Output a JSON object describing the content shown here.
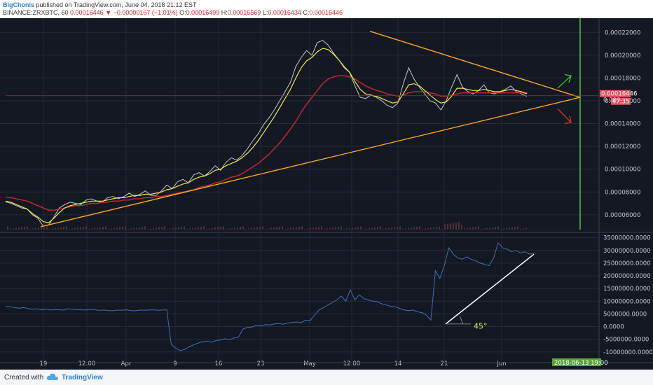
{
  "header": {
    "author": "BigChonis",
    "published_text": "published on TradingView.com, June 04, 2018 21:12 EST",
    "symbol": "BINANCE:ZRXBTC, 60",
    "last": "0.00016446",
    "change_arrow": "▼",
    "change": "−0.00000167 (−1.01%)",
    "open_label": "O:",
    "open": "0.00016499",
    "high_label": "H:",
    "high": "0.00016569",
    "low_label": "L:",
    "low": "0.00016434",
    "close_label": "C:",
    "close": "0.00016446"
  },
  "footer": {
    "created_with": "Created with",
    "brand": "TradingView",
    "logo_icon": "tradingview-cloud-icon"
  },
  "chart_data": {
    "type": "line",
    "x_tick_labels": [
      "19",
      "12:00",
      "Apr",
      "9",
      "16",
      "23",
      "May",
      "12:00",
      "14",
      "21",
      "Jun"
    ],
    "price_panel": {
      "y_tick_labels": [
        "0.00022000",
        "0.00020000",
        "0.00018000",
        "0.00016000",
        "0.00014000",
        "0.00012000",
        "0.00010000",
        "0.00008000",
        "0.00006000"
      ],
      "ylim": [
        4.7e-05,
        0.00023
      ],
      "price_label": "0.00016446",
      "countdown_label": "47:35",
      "partial_label": "0.000",
      "price_series": [
        7.15e-05,
        7e-05,
        6.8e-05,
        6.6e-05,
        6.5e-05,
        6e-05,
        5.7e-05,
        5e-05,
        5.1e-05,
        5.8e-05,
        6.6e-05,
        6.9e-05,
        7.1e-05,
        7e-05,
        6.9e-05,
        7.3e-05,
        7.4e-05,
        7.2e-05,
        7.1e-05,
        7.5e-05,
        7.6e-05,
        7.4e-05,
        7.6e-05,
        7.9e-05,
        7.6e-05,
        7.8e-05,
        8.1e-05,
        7.7e-05,
        7.7e-05,
        8.1e-05,
        8.6e-05,
        8.3e-05,
        8.9e-05,
        9.1e-05,
        8.8e-05,
        9.5e-05,
        9.7e-05,
        9.4e-05,
        9.8e-05,
        0.000103,
        9.9e-05,
        0.000106,
        0.00011,
        0.000108,
        0.000112,
        0.000118,
        0.000125,
        0.000131,
        0.000139,
        0.000145,
        0.000152,
        0.00016,
        0.000168,
        0.000176,
        0.00019,
        0.000198,
        0.000204,
        0.0002,
        0.000211,
        0.000213,
        0.000209,
        0.000202,
        0.000196,
        0.000189,
        0.000185,
        0.000173,
        0.000163,
        0.000162,
        0.000165,
        0.000163,
        0.00016,
        0.000156,
        0.000154,
        0.000158,
        0.000175,
        0.000189,
        0.000179,
        0.000172,
        0.000166,
        0.00016,
        0.000158,
        0.000152,
        0.00016,
        0.000172,
        0.000183,
        0.000172,
        0.000168,
        0.000166,
        0.000169,
        0.000174,
        0.000167,
        0.000166,
        0.000168,
        0.00017,
        0.000173,
        0.000168,
        0.000166,
        0.000164
      ],
      "ma_fast": [
        7.2e-05,
        7.1e-05,
        6.9e-05,
        6.7e-05,
        6.5e-05,
        6.1e-05,
        5.8e-05,
        5.4e-05,
        5.3e-05,
        5.7e-05,
        6.2e-05,
        6.6e-05,
        6.8e-05,
        6.9e-05,
        7e-05,
        7.1e-05,
        7.2e-05,
        7.2e-05,
        7.2e-05,
        7.3e-05,
        7.4e-05,
        7.5e-05,
        7.5e-05,
        7.6e-05,
        7.7e-05,
        7.7e-05,
        7.8e-05,
        7.8e-05,
        7.9e-05,
        8e-05,
        8.2e-05,
        8.3e-05,
        8.5e-05,
        8.7e-05,
        8.8e-05,
        9.1e-05,
        9.3e-05,
        9.4e-05,
        9.6e-05,
        9.9e-05,
        0.0001,
        0.000103,
        0.000105,
        0.000107,
        0.00011,
        0.000114,
        0.000119,
        0.000125,
        0.000132,
        0.000139,
        0.000146,
        0.000154,
        0.000162,
        0.00017,
        0.00018,
        0.000189,
        0.000195,
        0.000198,
        0.000203,
        0.000206,
        0.000205,
        0.000201,
        0.000196,
        0.00019,
        0.000185,
        0.000177,
        0.00017,
        0.000166,
        0.000165,
        0.000164,
        0.000162,
        0.00016,
        0.000158,
        0.000159,
        0.000166,
        0.000174,
        0.000175,
        0.000173,
        0.000169,
        0.000165,
        0.000161,
        0.000158,
        0.000159,
        0.000164,
        0.000171,
        0.000171,
        0.00017,
        0.000169,
        0.000169,
        0.00017,
        0.000169,
        0.000168,
        0.000168,
        0.000169,
        0.00017,
        0.000169,
        0.000168,
        0.000166
      ],
      "ma_slow": [
        7.55e-05,
        7.5e-05,
        7.4e-05,
        7.3e-05,
        7.2e-05,
        7e-05,
        6.8e-05,
        6.6e-05,
        6.4e-05,
        6.4e-05,
        6.5e-05,
        6.6e-05,
        6.7e-05,
        6.8e-05,
        6.8e-05,
        6.9e-05,
        7e-05,
        7e-05,
        7.1e-05,
        7.1e-05,
        7.2e-05,
        7.2e-05,
        7.3e-05,
        7.3e-05,
        7.4e-05,
        7.4e-05,
        7.5e-05,
        7.5e-05,
        7.6e-05,
        7.6e-05,
        7.7e-05,
        7.8e-05,
        7.9e-05,
        8e-05,
        8.1e-05,
        8.2e-05,
        8.4e-05,
        8.5e-05,
        8.6e-05,
        8.8e-05,
        8.9e-05,
        9.1e-05,
        9.3e-05,
        9.4e-05,
        9.6e-05,
        9.9e-05,
        0.000102,
        0.000105,
        0.000109,
        0.000113,
        0.000118,
        0.000123,
        0.000129,
        0.000135,
        0.000142,
        0.00015,
        0.000157,
        0.000163,
        0.000169,
        0.000175,
        0.000179,
        0.000181,
        0.000182,
        0.000182,
        0.000181,
        0.000179,
        0.000176,
        0.000173,
        0.000171,
        0.000169,
        0.000168,
        0.000166,
        0.000165,
        0.000164,
        0.000165,
        0.000167,
        0.000168,
        0.000168,
        0.000168,
        0.000167,
        0.000166,
        0.000164,
        0.000164,
        0.000165,
        0.000166,
        0.000167,
        0.000167,
        0.000167,
        0.000167,
        0.000167,
        0.000167,
        0.000167,
        0.000167,
        0.000167,
        0.000167,
        0.000167,
        0.000167,
        0.000167
      ]
    },
    "indicator_panel": {
      "y_tick_labels": [
        "35000000.0000",
        "30000000.0000",
        "25000000.0000",
        "20000000.0000",
        "15000000.0000",
        "10000000.0000",
        "5000000.0000",
        "0.0000",
        "-5000000.0000",
        "-10000000.0000"
      ],
      "ylim": [
        -12000000,
        36000000
      ],
      "series": [
        8000000,
        7800000,
        7500000,
        7200000,
        7500000,
        7100000,
        6800000,
        7000000,
        6600000,
        6900000,
        6500000,
        6700000,
        6600000,
        6500000,
        7000000,
        6800000,
        6700000,
        6600000,
        6500000,
        6800000,
        6600000,
        6400000,
        6500000,
        6300000,
        6200000,
        6500000,
        6400000,
        6600000,
        6300000,
        6200000,
        6500000,
        6400000,
        6500000,
        6600000,
        6400000,
        6500000,
        6600000,
        -7000000,
        -8500000,
        -9500000,
        -9000000,
        -8000000,
        -7200000,
        -6500000,
        -6000000,
        -5700000,
        -6200000,
        -5500000,
        -5300000,
        -4800000,
        -5200000,
        -4500000,
        -4200000,
        -1000000,
        -300000,
        -200000,
        500000,
        300000,
        800000,
        600000,
        1000000,
        1200000,
        900000,
        1400000,
        1600000,
        1800000,
        1500000,
        2500000,
        2300000,
        4500000,
        6500000,
        7500000,
        8500000,
        9500000,
        10500000,
        12000000,
        10000000,
        14500000,
        10500000,
        12500000,
        11000000,
        10500000,
        10000000,
        9800000,
        9000000,
        8500000,
        8000000,
        7800000,
        7200000,
        6500000,
        6300000,
        6500000,
        5800000,
        5500000,
        4500000,
        2500000,
        22000000,
        19000000,
        24000000,
        31000000,
        28500000,
        27000000,
        26500000,
        27500000,
        26500000,
        26000000,
        25000000,
        24500000,
        24000000,
        27000000,
        33000000,
        31000000,
        30500000,
        29500000,
        30000000,
        29000000,
        29500000,
        28500000,
        29000000
      ],
      "annotation": "45°"
    },
    "marker_date_label": "2018-06-13 19:00",
    "colors": {
      "background": "#141823",
      "price": "#c8c8c8",
      "ma_fast": "#f0e64a",
      "ma_slow": "#c0282d",
      "indicator": "#3f6fb5",
      "trendline": "#f7a623",
      "vertical_marker": "#5bbf47",
      "arrow_up": "#37c837",
      "arrow_down": "#e0312a",
      "label_bg": "#e35560",
      "marker_label_bg": "#5aa43a"
    }
  }
}
